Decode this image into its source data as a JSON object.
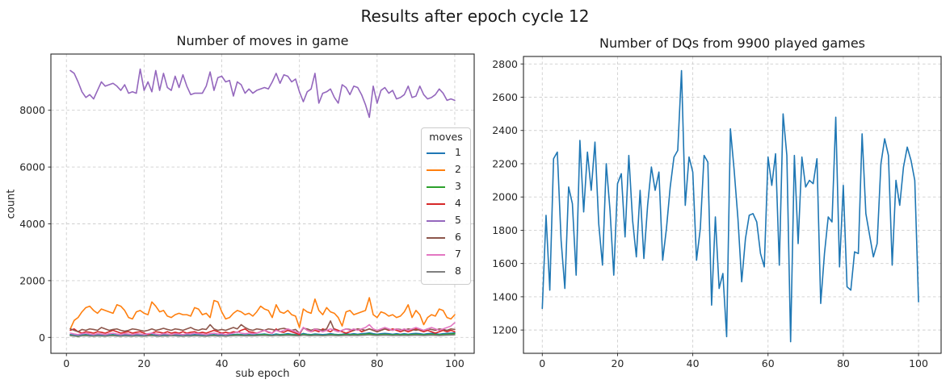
{
  "suptitle": "Results after epoch cycle 12",
  "chart_data": [
    {
      "type": "line",
      "title": "Number of moves in game",
      "xlabel": "sub epoch",
      "ylabel": "count",
      "legend_title": "moves",
      "legend_position": "center-right",
      "grid": true,
      "x_start": 1,
      "x_step": 1,
      "xlim": [
        -4,
        105
      ],
      "ylim": [
        -560,
        9980
      ],
      "xticks": [
        0,
        20,
        40,
        60,
        80,
        100
      ],
      "yticks": [
        0,
        2000,
        4000,
        6000,
        8000
      ],
      "series": [
        {
          "name": "1",
          "color": "#1f77b4",
          "values": [
            100,
            80,
            60,
            90,
            100,
            80,
            70,
            90,
            80,
            70,
            90,
            100,
            80,
            70,
            90,
            80,
            70,
            90,
            80,
            70,
            90,
            100,
            80,
            70,
            90,
            80,
            100,
            90,
            80,
            70,
            90,
            80,
            100,
            90,
            80,
            70,
            90,
            100,
            80,
            90,
            70,
            90,
            100,
            110,
            100,
            90,
            100,
            90,
            100,
            110,
            120,
            100,
            90,
            120,
            100,
            110,
            130,
            110,
            100,
            90,
            140,
            110,
            100,
            120,
            110,
            100,
            110,
            130,
            110,
            100,
            110,
            130,
            110,
            130,
            110,
            130,
            140,
            160,
            130,
            110,
            130,
            140,
            130,
            110,
            130,
            110,
            130,
            110,
            130,
            140,
            130,
            110,
            130,
            140,
            130,
            110,
            130,
            140,
            150,
            160
          ]
        },
        {
          "name": "2",
          "color": "#ff7f0e",
          "values": [
            300,
            600,
            700,
            900,
            1050,
            1100,
            950,
            850,
            1000,
            950,
            900,
            850,
            1150,
            1100,
            950,
            700,
            650,
            900,
            950,
            850,
            800,
            1250,
            1100,
            900,
            950,
            750,
            700,
            800,
            850,
            800,
            800,
            750,
            1050,
            1000,
            800,
            850,
            700,
            1300,
            1250,
            900,
            650,
            700,
            850,
            950,
            900,
            800,
            850,
            750,
            900,
            1100,
            1000,
            950,
            700,
            1150,
            900,
            850,
            950,
            800,
            750,
            350,
            1000,
            900,
            850,
            1350,
            950,
            800,
            1050,
            900,
            850,
            700,
            400,
            900,
            950,
            800,
            850,
            900,
            950,
            1400,
            800,
            700,
            900,
            850,
            750,
            800,
            700,
            750,
            900,
            1150,
            700,
            950,
            800,
            450,
            700,
            800,
            750,
            1000,
            950,
            700,
            650,
            800
          ]
        },
        {
          "name": "3",
          "color": "#2ca02c",
          "values": [
            80,
            50,
            30,
            60,
            80,
            50,
            40,
            60,
            50,
            40,
            60,
            80,
            50,
            40,
            60,
            50,
            40,
            60,
            50,
            40,
            60,
            80,
            50,
            40,
            60,
            50,
            70,
            60,
            50,
            40,
            60,
            50,
            70,
            60,
            50,
            40,
            60,
            80,
            50,
            60,
            40,
            60,
            80,
            90,
            80,
            60,
            80,
            60,
            80,
            90,
            100,
            80,
            60,
            90,
            80,
            90,
            100,
            90,
            80,
            60,
            110,
            90,
            80,
            90,
            80,
            70,
            80,
            100,
            90,
            80,
            90,
            100,
            90,
            100,
            90,
            100,
            110,
            130,
            100,
            90,
            100,
            110,
            100,
            90,
            100,
            90,
            100,
            90,
            100,
            110,
            100,
            90,
            100,
            110,
            100,
            90,
            100,
            110,
            120,
            130
          ]
        },
        {
          "name": "4",
          "color": "#d62728",
          "values": [
            250,
            300,
            200,
            150,
            200,
            180,
            150,
            200,
            180,
            150,
            200,
            250,
            200,
            150,
            180,
            200,
            150,
            180,
            200,
            150,
            100,
            150,
            200,
            180,
            150,
            200,
            150,
            180,
            150,
            200,
            150,
            180,
            200,
            150,
            180,
            150,
            200,
            250,
            200,
            150,
            180,
            150,
            200,
            180,
            250,
            300,
            200,
            180,
            150,
            200,
            250,
            180,
            150,
            300,
            200,
            180,
            250,
            200,
            150,
            100,
            350,
            250,
            200,
            250,
            200,
            300,
            250,
            200,
            300,
            250,
            200,
            150,
            200,
            250,
            300,
            200,
            250,
            300,
            250,
            200,
            250,
            300,
            250,
            300,
            250,
            200,
            250,
            200,
            250,
            300,
            250,
            200,
            250,
            200,
            150,
            200,
            250,
            200,
            250,
            200
          ]
        },
        {
          "name": "5",
          "color": "#9467bd",
          "values": [
            9400,
            9300,
            9000,
            8650,
            8450,
            8550,
            8400,
            8700,
            9000,
            8850,
            8900,
            8950,
            8850,
            8700,
            8900,
            8600,
            8650,
            8600,
            9450,
            8700,
            9000,
            8650,
            9400,
            8700,
            9300,
            8800,
            8700,
            9200,
            8800,
            9250,
            8850,
            8550,
            8600,
            8600,
            8600,
            8850,
            9350,
            8700,
            9150,
            9200,
            9000,
            9050,
            8500,
            9000,
            8900,
            8600,
            8750,
            8600,
            8700,
            8750,
            8800,
            8750,
            9000,
            9300,
            8950,
            9250,
            9200,
            9000,
            9100,
            8650,
            8300,
            8650,
            8750,
            9300,
            8250,
            8600,
            8650,
            8750,
            8450,
            8250,
            8900,
            8800,
            8550,
            8850,
            8800,
            8550,
            8200,
            7750,
            8850,
            8250,
            8700,
            8800,
            8600,
            8700,
            8400,
            8450,
            8550,
            8850,
            8450,
            8500,
            8850,
            8550,
            8400,
            8450,
            8550,
            8750,
            8600,
            8350,
            8400,
            8350
          ]
        },
        {
          "name": "6",
          "color": "#8c564b",
          "values": [
            300,
            250,
            200,
            280,
            250,
            300,
            280,
            250,
            350,
            300,
            250,
            280,
            300,
            250,
            220,
            250,
            300,
            280,
            250,
            220,
            250,
            300,
            250,
            280,
            320,
            280,
            250,
            300,
            280,
            250,
            300,
            350,
            280,
            250,
            300,
            280,
            450,
            300,
            250,
            280,
            250,
            300,
            350,
            300,
            450,
            350,
            280,
            250,
            300,
            280,
            250,
            300,
            280,
            250,
            300,
            320,
            280,
            250,
            280,
            150,
            320,
            300,
            250,
            300,
            280,
            250,
            300,
            580,
            250,
            200,
            250,
            300,
            280,
            250,
            300,
            280,
            250,
            300,
            250,
            200,
            250,
            300,
            280,
            250,
            300,
            280,
            250,
            300,
            280,
            250,
            280,
            250,
            300,
            280,
            250,
            300,
            280,
            250,
            300,
            280
          ]
        },
        {
          "name": "7",
          "color": "#e377c2",
          "values": [
            150,
            120,
            100,
            130,
            150,
            120,
            100,
            130,
            120,
            100,
            130,
            150,
            120,
            100,
            130,
            120,
            100,
            130,
            120,
            100,
            130,
            150,
            120,
            100,
            130,
            120,
            100,
            130,
            120,
            100,
            130,
            120,
            150,
            130,
            120,
            100,
            130,
            150,
            120,
            130,
            100,
            130,
            150,
            200,
            150,
            130,
            150,
            130,
            150,
            200,
            250,
            200,
            150,
            250,
            200,
            250,
            300,
            250,
            200,
            150,
            350,
            250,
            200,
            300,
            250,
            200,
            250,
            300,
            250,
            200,
            250,
            300,
            250,
            300,
            250,
            300,
            350,
            450,
            300,
            250,
            300,
            350,
            300,
            250,
            300,
            250,
            300,
            250,
            300,
            350,
            300,
            250,
            300,
            350,
            300,
            250,
            300,
            350,
            400,
            520
          ]
        },
        {
          "name": "8",
          "color": "#7f7f7f",
          "values": [
            60,
            50,
            40,
            55,
            60,
            50,
            45,
            55,
            50,
            45,
            55,
            60,
            50,
            45,
            55,
            50,
            45,
            55,
            50,
            45,
            55,
            60,
            50,
            45,
            55,
            50,
            60,
            55,
            50,
            45,
            55,
            50,
            60,
            55,
            50,
            45,
            55,
            60,
            50,
            55,
            45,
            55,
            60,
            65,
            60,
            55,
            60,
            55,
            60,
            65,
            70,
            60,
            55,
            70,
            60,
            65,
            75,
            65,
            60,
            55,
            80,
            65,
            60,
            70,
            65,
            60,
            65,
            75,
            65,
            60,
            65,
            75,
            65,
            75,
            65,
            75,
            80,
            90,
            75,
            65,
            75,
            80,
            75,
            65,
            75,
            65,
            75,
            65,
            75,
            80,
            75,
            65,
            75,
            80,
            75,
            65,
            75,
            80,
            85,
            90
          ]
        }
      ]
    },
    {
      "type": "line",
      "title": "Number of DQs from 9900 played games",
      "xlabel": "",
      "ylabel": "",
      "grid": true,
      "x_start": 0,
      "x_step": 1,
      "xlim": [
        -5,
        106
      ],
      "ylim": [
        1060,
        2845
      ],
      "xticks": [
        0,
        20,
        40,
        60,
        80,
        100
      ],
      "yticks": [
        1200,
        1400,
        1600,
        1800,
        2000,
        2200,
        2400,
        2600,
        2800
      ],
      "series": [
        {
          "name": "DQs",
          "color": "#1f77b4",
          "values": [
            1330,
            1890,
            1440,
            2230,
            2270,
            1740,
            1450,
            2060,
            1960,
            1530,
            2340,
            1910,
            2270,
            2040,
            2330,
            1840,
            1590,
            2200,
            1920,
            1530,
            2080,
            2140,
            1760,
            2250,
            1860,
            1640,
            2040,
            1630,
            1950,
            2180,
            2040,
            2150,
            1620,
            1810,
            2060,
            2240,
            2280,
            2760,
            1950,
            2240,
            2150,
            1620,
            1810,
            2250,
            2210,
            1350,
            1880,
            1450,
            1540,
            1160,
            2410,
            2160,
            1870,
            1490,
            1750,
            1890,
            1900,
            1850,
            1660,
            1580,
            2240,
            2070,
            2260,
            1590,
            2500,
            2250,
            1130,
            2250,
            1720,
            2240,
            2060,
            2100,
            2080,
            2230,
            1360,
            1660,
            1880,
            1850,
            2480,
            1580,
            2070,
            1460,
            1440,
            1670,
            1660,
            2380,
            1900,
            1770,
            1640,
            1720,
            2200,
            2350,
            2250,
            1590,
            2100,
            1950,
            2180,
            2300,
            2220,
            2100,
            1370
          ]
        }
      ]
    }
  ]
}
